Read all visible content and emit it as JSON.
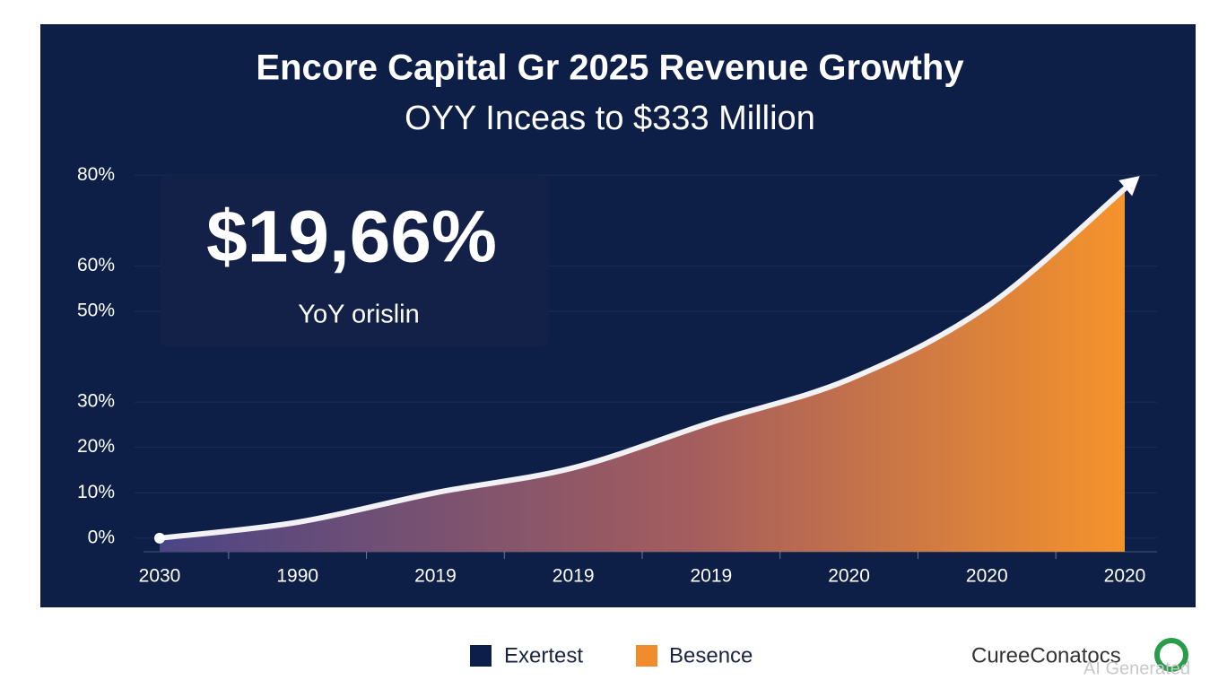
{
  "chart_data": {
    "type": "area",
    "title": "Encore Capital Gr 2025 Revenue Growthy",
    "subtitle": "OYY Inceas to $333 Million",
    "annotation": {
      "value_text": "$19,66%",
      "caption": "YoY orislin"
    },
    "categories": [
      "2030",
      "1990",
      "2019",
      "2019",
      "2019",
      "2020",
      "2020",
      "2020"
    ],
    "series": [
      {
        "color": "#f08c2c",
        "values": [
          0,
          3.5,
          10,
          15.5,
          25.5,
          35,
          51,
          77
        ]
      }
    ],
    "ylim": [
      -3,
      84
    ],
    "yticks": [
      {
        "value": 0,
        "label": "0%"
      },
      {
        "value": 10,
        "label": "10%"
      },
      {
        "value": 20,
        "label": "20%"
      },
      {
        "value": 30,
        "label": "30%"
      },
      {
        "value": 50,
        "label": "50%"
      },
      {
        "value": 60,
        "label": "60%"
      },
      {
        "value": 80,
        "label": "80%"
      }
    ],
    "grid": true,
    "legend": [
      {
        "name": "Exertest",
        "color": "#0d1e4a"
      },
      {
        "name": "Besence",
        "color": "#f08c2c"
      }
    ],
    "brand": "CureeConatocs",
    "watermark": "AI Generated"
  }
}
